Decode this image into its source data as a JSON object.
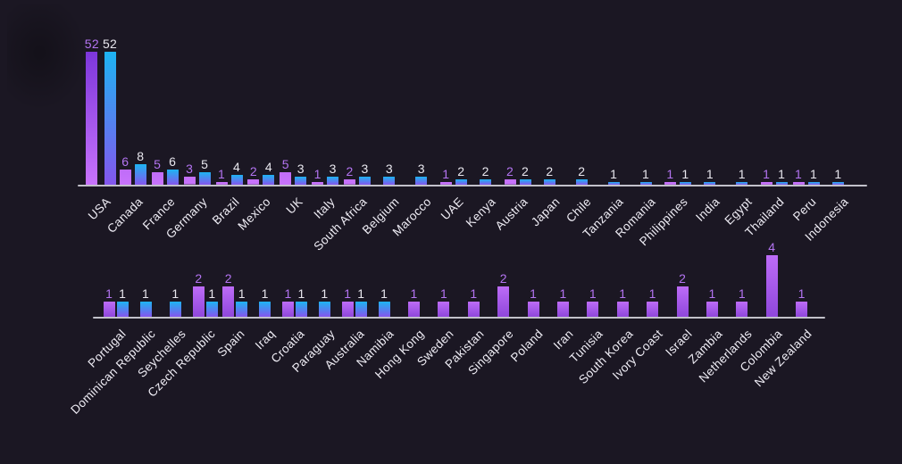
{
  "colors": {
    "background": "#1b1723",
    "axis": "#c2c1ca",
    "category_label": "#efedf5",
    "value_label_purple": "#b474f2",
    "value_label_blue": "#e8e7ee",
    "purple_gradient_bright": "#c873fc",
    "purple_gradient_dark": "#7c36da",
    "purple_bar_top": "#bd6cf7",
    "purple_bar_bottom": "#8f47db",
    "blue_bar_top": "#1db4f2",
    "blue_bar_bottom": "#8456ee"
  },
  "chart_data": [
    {
      "type": "bar",
      "position": "top-row",
      "title": "",
      "xlabel": "",
      "ylabel": "",
      "grid": false,
      "legend": null,
      "ylim": [
        0,
        55
      ],
      "value_labels": true,
      "categories": [
        "USA",
        "Canada",
        "France",
        "Germany",
        "Brazil",
        "Mexico",
        "UK",
        "Italy",
        "South Africa",
        "Belgium",
        "Marocco",
        "UAE",
        "Kenya",
        "Austria",
        "Japan",
        "Chile",
        "Tanzania",
        "Romania",
        "Philippines",
        "India",
        "Egypt",
        "Thailand",
        "Peru",
        "Indonesia"
      ],
      "series": [
        {
          "name": "purple",
          "values": [
            52,
            6,
            5,
            3,
            1,
            2,
            5,
            1,
            2,
            null,
            null,
            1,
            null,
            2,
            null,
            null,
            null,
            null,
            1,
            null,
            null,
            1,
            1,
            null
          ]
        },
        {
          "name": "blue",
          "values": [
            52,
            8,
            6,
            5,
            4,
            4,
            3,
            3,
            3,
            3,
            3,
            2,
            2,
            2,
            2,
            2,
            1,
            1,
            1,
            1,
            1,
            1,
            1,
            1
          ]
        }
      ]
    },
    {
      "type": "bar",
      "position": "bottom-row",
      "title": "",
      "xlabel": "",
      "ylabel": "",
      "grid": false,
      "legend": null,
      "ylim": [
        0,
        4.3
      ],
      "value_labels": true,
      "categories": [
        "Portugal",
        "Dominican Republic",
        "Seychelles",
        "Czech Republic",
        "Spain",
        "Iraq",
        "Croatia",
        "Paraguay",
        "Australia",
        "Namibia",
        "Hong Kong",
        "Sweden",
        "Pakistan",
        "Singapore",
        "Poland",
        "Iran",
        "Tunisia",
        "South Korea",
        "Ivory Coast",
        "Israel",
        "Zambia",
        "Netherlands",
        "Colombia",
        "New Zealand"
      ],
      "series": [
        {
          "name": "purple",
          "values": [
            1,
            null,
            null,
            2,
            2,
            null,
            1,
            null,
            1,
            null,
            1,
            1,
            1,
            2,
            1,
            1,
            1,
            1,
            1,
            2,
            1,
            1,
            4,
            1
          ]
        },
        {
          "name": "blue",
          "values": [
            1,
            1,
            1,
            1,
            1,
            1,
            1,
            1,
            1,
            1,
            null,
            null,
            null,
            null,
            null,
            null,
            null,
            null,
            null,
            null,
            null,
            null,
            null,
            null
          ]
        }
      ]
    }
  ]
}
